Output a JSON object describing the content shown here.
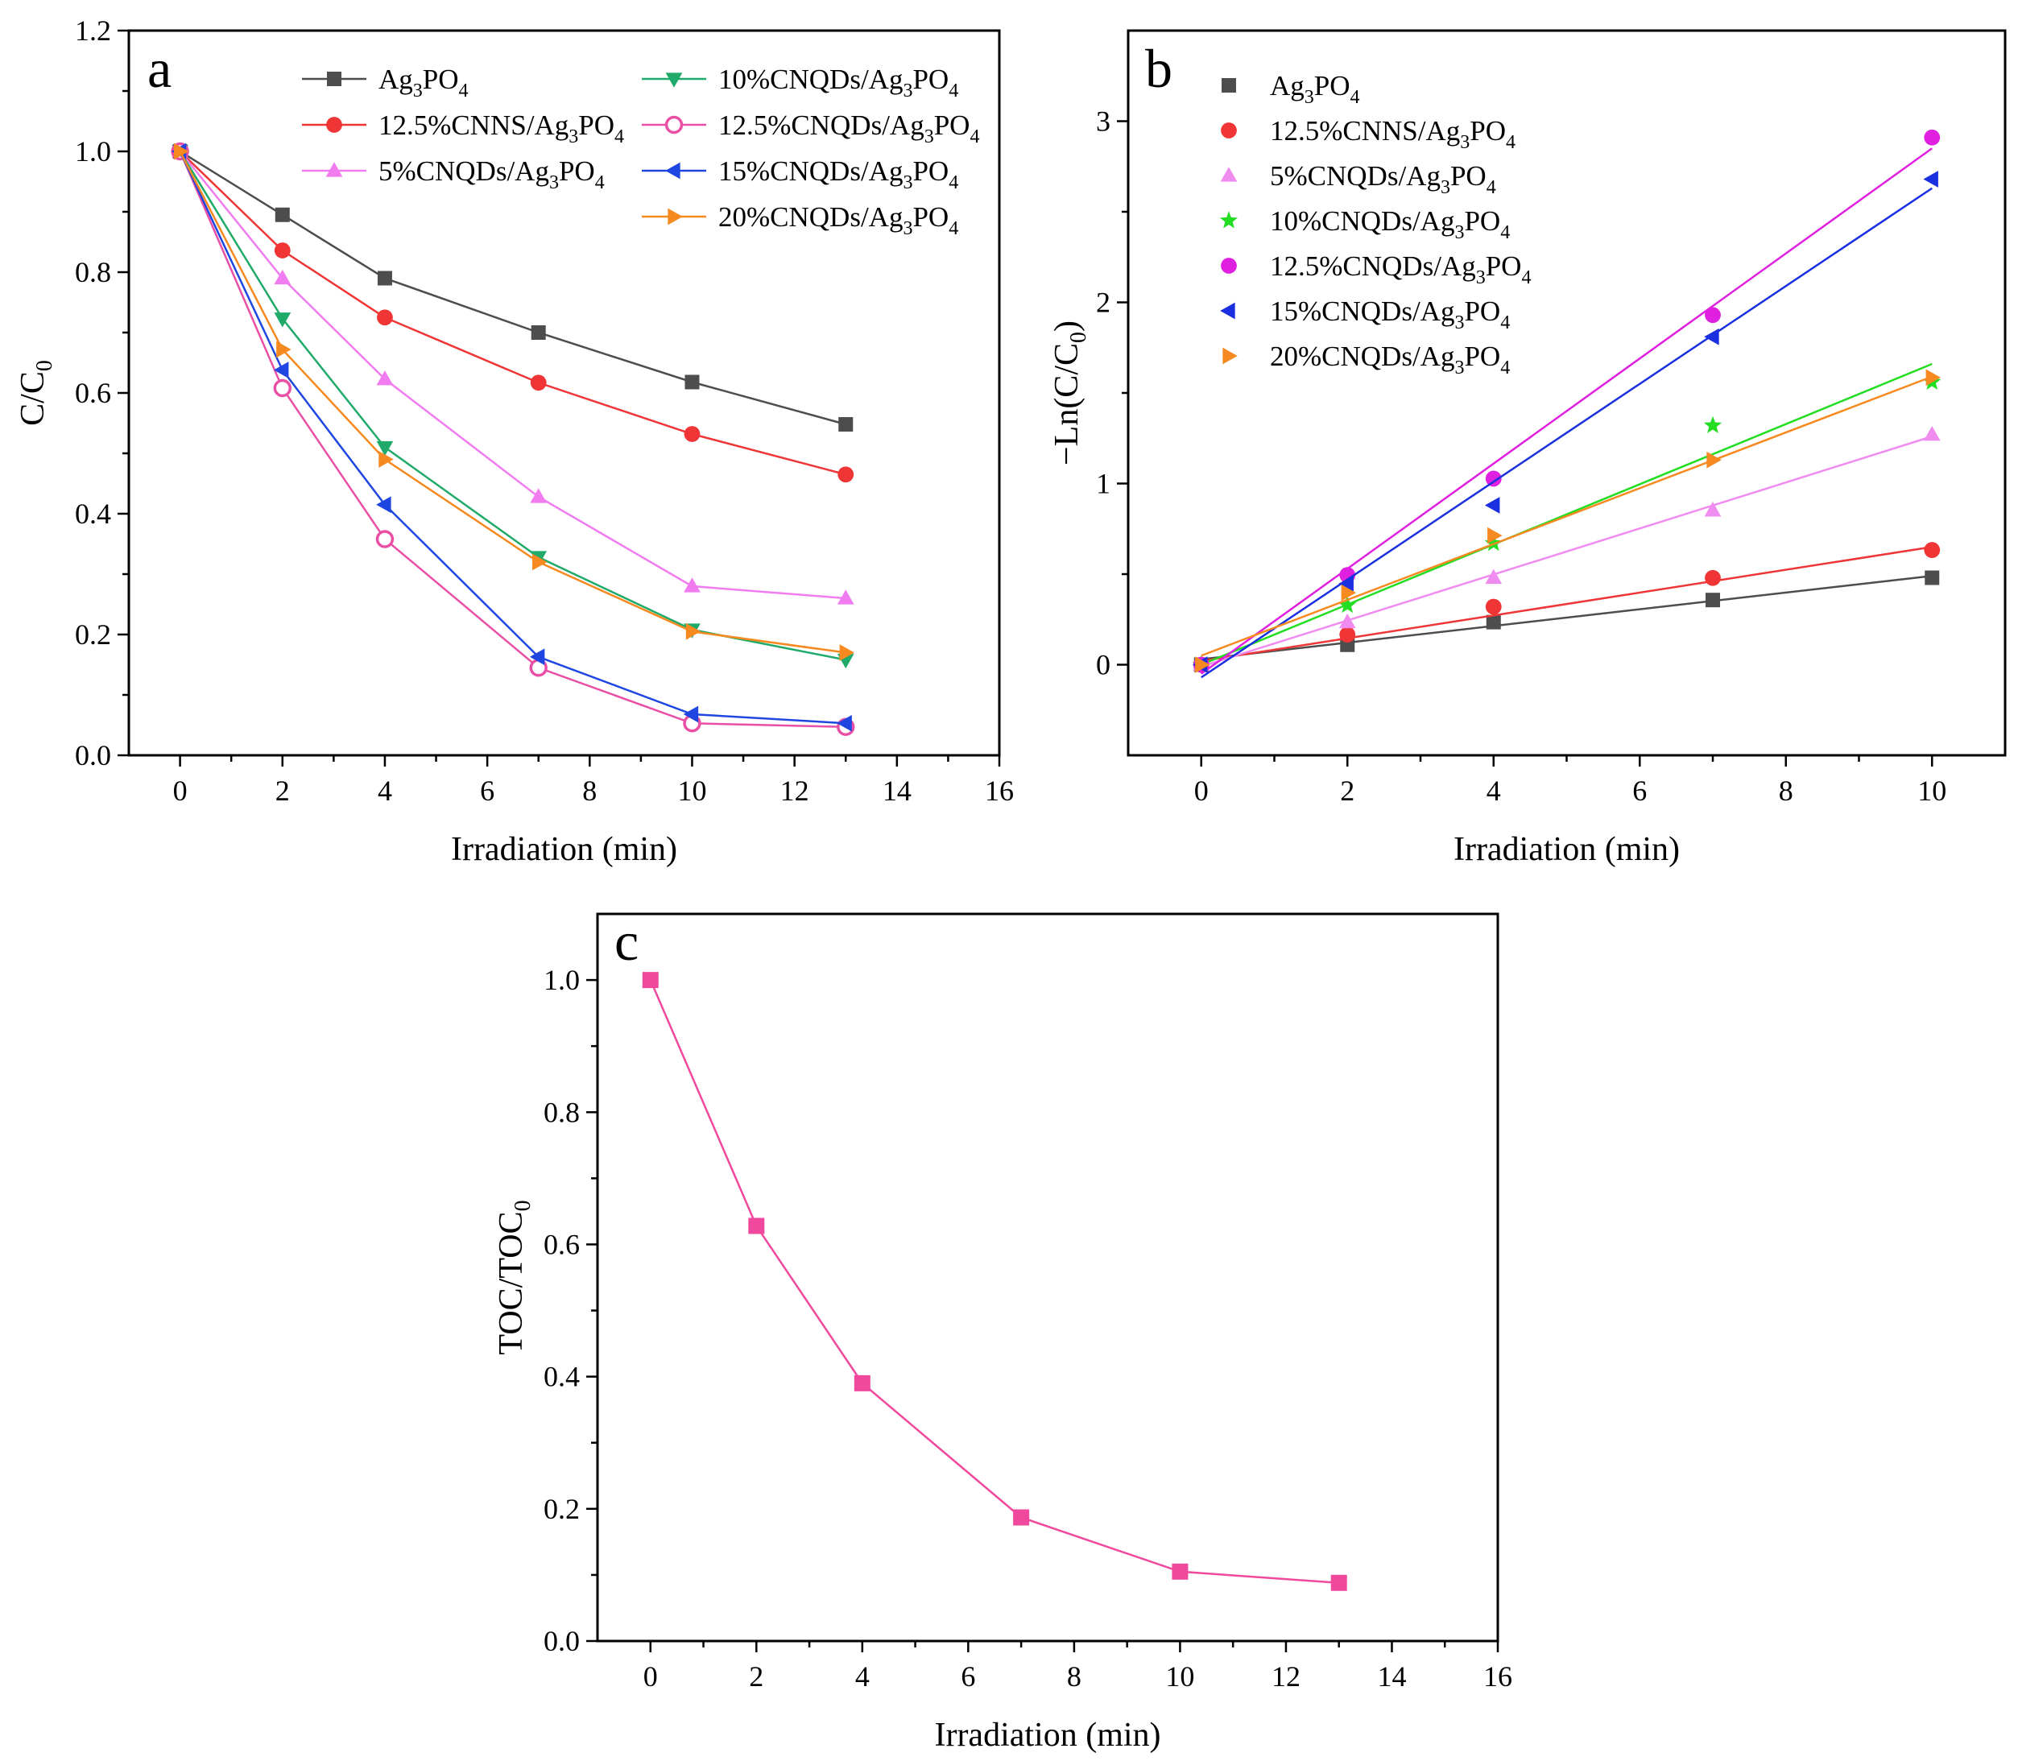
{
  "figure": {
    "x_axis_label": "Irradiation (min)"
  },
  "series_styles": [
    {
      "name": "Ag3PO4",
      "label": "Ag",
      "sub1": "3",
      "mid": "PO",
      "sub2": "4",
      "color": "#4d4d4d",
      "marker": "square"
    },
    {
      "name": "12.5%CNNS/Ag3PO4",
      "label": "12.5%CNNS/Ag",
      "sub1": "3",
      "mid": "PO",
      "sub2": "4",
      "color": "#ef3535",
      "marker": "circle"
    },
    {
      "name": "5%CNQDs/Ag3PO4",
      "label": "5%CNQDs/Ag",
      "sub1": "3",
      "mid": "PO",
      "sub2": "4",
      "color": "#f07cf0",
      "marker": "triangle-up"
    },
    {
      "name": "10%CNQDs/Ag3PO4",
      "label": "10%CNQDs/Ag",
      "sub1": "3",
      "mid": "PO",
      "sub2": "4",
      "color": "#1faa6a",
      "marker": "triangle-down"
    },
    {
      "name": "12.5%CNQDs/Ag3PO4",
      "label": "12.5%CNQDs/Ag",
      "sub1": "3",
      "mid": "PO",
      "sub2": "4",
      "color": "#ea4fa6",
      "marker": "hollow-circle"
    },
    {
      "name": "15%CNQDs/Ag3PO4",
      "label": "15%CNQDs/Ag",
      "sub1": "3",
      "mid": "PO",
      "sub2": "4",
      "color": "#1f46e0",
      "marker": "triangle-left"
    },
    {
      "name": "20%CNQDs/Ag3PO4",
      "label": "20%CNQDs/Ag",
      "sub1": "3",
      "mid": "PO",
      "sub2": "4",
      "color": "#f6891f",
      "marker": "triangle-right"
    }
  ],
  "chart_data": [
    {
      "panel": "a",
      "type": "line",
      "xlabel": "Irradiation (min)",
      "ylabel": "C/C0",
      "xlim": [
        -1,
        16
      ],
      "ylim": [
        0,
        1.2
      ],
      "xticks": [
        0,
        2,
        4,
        6,
        8,
        10,
        12,
        14,
        16
      ],
      "yticks": [
        0.0,
        0.2,
        0.4,
        0.6,
        0.8,
        1.0,
        1.2
      ],
      "ytick_labels": [
        "0.0",
        "0.2",
        "0.4",
        "0.6",
        "0.8",
        "1.0",
        "1.2"
      ],
      "legend_position": "top-right",
      "x": [
        0,
        2,
        4,
        7,
        10,
        13
      ],
      "series": [
        {
          "name": "Ag3PO4",
          "values": [
            1.0,
            0.895,
            0.79,
            0.7,
            0.618,
            0.548
          ]
        },
        {
          "name": "12.5%CNNS/Ag3PO4",
          "values": [
            1.0,
            0.836,
            0.725,
            0.617,
            0.532,
            0.465
          ]
        },
        {
          "name": "5%CNQDs/Ag3PO4",
          "values": [
            1.0,
            0.79,
            0.623,
            0.428,
            0.28,
            0.26
          ]
        },
        {
          "name": "10%CNQDs/Ag3PO4",
          "values": [
            1.0,
            0.723,
            0.51,
            0.328,
            0.208,
            0.158
          ]
        },
        {
          "name": "12.5%CNQDs/Ag3PO4",
          "values": [
            1.0,
            0.608,
            0.358,
            0.145,
            0.053,
            0.047
          ]
        },
        {
          "name": "15%CNQDs/Ag3PO4",
          "values": [
            1.0,
            0.638,
            0.415,
            0.163,
            0.068,
            0.053
          ]
        },
        {
          "name": "20%CNQDs/Ag3PO4",
          "values": [
            1.0,
            0.672,
            0.49,
            0.32,
            0.205,
            0.17
          ]
        }
      ]
    },
    {
      "panel": "b",
      "type": "scatter",
      "xlabel": "Irradiation (min)",
      "ylabel": "−Ln(C/C0)",
      "xlim": [
        -1,
        11
      ],
      "ylim": [
        -0.5,
        3.5
      ],
      "xticks": [
        0,
        2,
        4,
        6,
        8,
        10
      ],
      "yticks": [
        0,
        1,
        2,
        3
      ],
      "ytick_labels": [
        "0",
        "1",
        "2",
        "3"
      ],
      "legend_position": "top-left",
      "x": [
        0,
        2,
        4,
        7,
        10
      ],
      "series": [
        {
          "name": "Ag3PO4",
          "values": [
            0,
            0.11,
            0.235,
            0.357,
            0.48
          ],
          "fit": [
            0.03,
            0.046
          ]
        },
        {
          "name": "12.5%CNNS/Ag3PO4",
          "values": [
            0,
            0.166,
            0.32,
            0.479,
            0.633
          ],
          "fit": [
            0.02,
            0.063
          ]
        },
        {
          "name": "5%CNQDs/Ag3PO4",
          "values": [
            0,
            0.235,
            0.48,
            0.852,
            1.27
          ],
          "fit": [
            -0.01,
            0.127
          ]
        },
        {
          "name": "10%CNQDs/Ag3PO4",
          "values": [
            0,
            0.328,
            0.67,
            1.32,
            1.56
          ],
          "fit": [
            0.0,
            0.166
          ]
        },
        {
          "name": "12.5%CNQDs/Ag3PO4",
          "values": [
            0,
            0.495,
            1.027,
            1.93,
            2.91
          ],
          "fit": [
            -0.05,
            0.29
          ]
        },
        {
          "name": "15%CNQDs/Ag3PO4",
          "values": [
            0,
            0.448,
            0.88,
            1.81,
            2.68
          ],
          "fit": [
            -0.07,
            0.27
          ]
        },
        {
          "name": "20%CNQDs/Ag3PO4",
          "values": [
            0,
            0.397,
            0.713,
            1.13,
            1.585
          ],
          "fit": [
            0.05,
            0.154
          ]
        }
      ]
    },
    {
      "panel": "c",
      "type": "line",
      "xlabel": "Irradiation (min)",
      "ylabel": "TOC/TOC0",
      "xlim": [
        -1,
        16
      ],
      "ylim": [
        0,
        1.1
      ],
      "xticks": [
        0,
        2,
        4,
        6,
        8,
        10,
        12,
        14,
        16
      ],
      "yticks": [
        0.0,
        0.2,
        0.4,
        0.6,
        0.8,
        1.0
      ],
      "ytick_labels": [
        "0.0",
        "0.2",
        "0.4",
        "0.6",
        "0.8",
        "1.0"
      ],
      "legend_position": "none",
      "x": [
        0,
        2,
        4,
        7,
        10,
        13
      ],
      "series": [
        {
          "name": "TOC/TOC0",
          "color": "#f0489c",
          "marker": "square",
          "values": [
            1.0,
            0.628,
            0.39,
            0.187,
            0.105,
            0.088
          ]
        }
      ]
    }
  ]
}
